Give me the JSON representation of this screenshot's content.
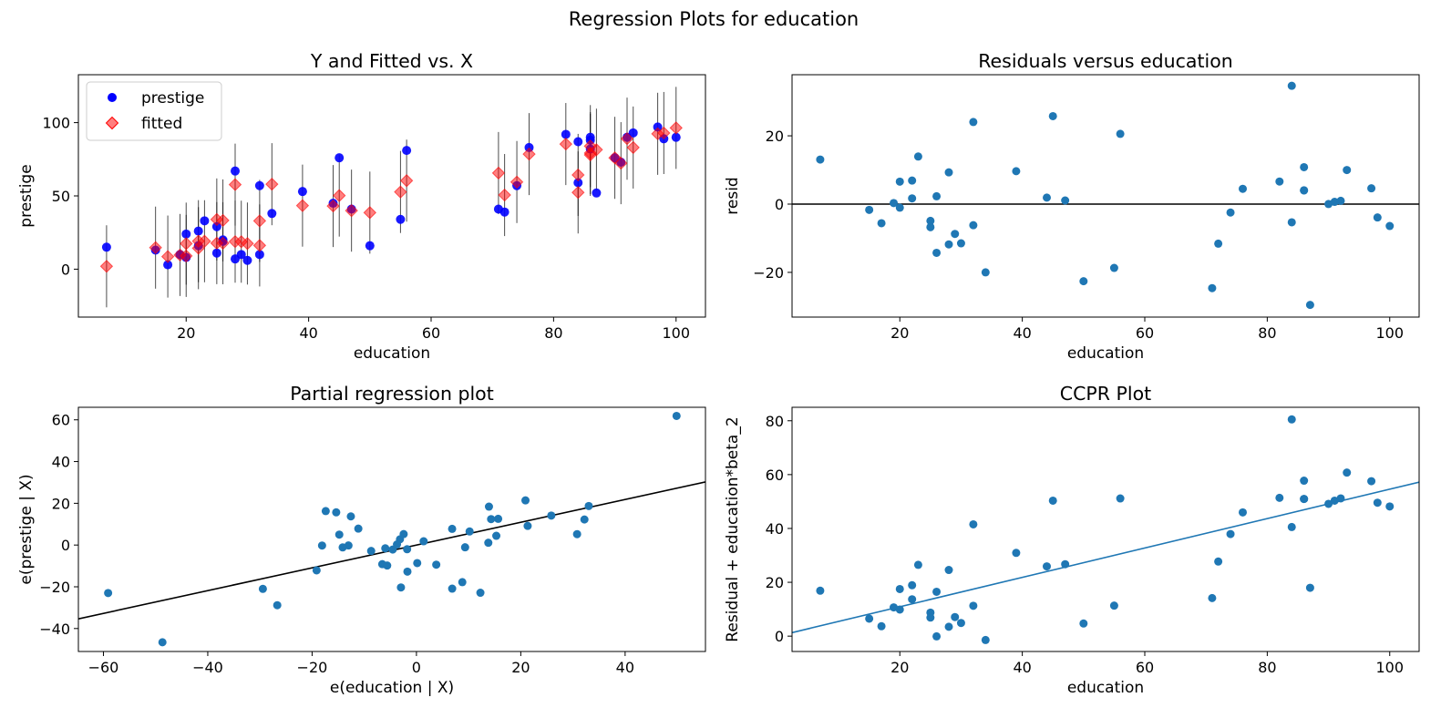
{
  "suptitle": "Regression Plots for education",
  "chart_data": [
    {
      "type": "scatter",
      "title": "Y and Fitted vs. X",
      "xlabel": "education",
      "ylabel": "prestige",
      "xlim": [
        2.4,
        104.8
      ],
      "ylim": [
        -32.7,
        132.7
      ],
      "xticks": [
        20,
        40,
        60,
        80,
        100
      ],
      "yticks": [
        0,
        50,
        100
      ],
      "legend": "upper left",
      "grid": false,
      "colors": {
        "prestige": "#0000ff",
        "fitted": "#ff0000",
        "interval": "#000000"
      },
      "interval_halfwidth": 28,
      "x": [
        86,
        76,
        92,
        90,
        86,
        84,
        93,
        100,
        87,
        86,
        74,
        98,
        97,
        84,
        91,
        34,
        45,
        56,
        44,
        82,
        72,
        55,
        71,
        50,
        23,
        39,
        28,
        32,
        22,
        25,
        29,
        7,
        26,
        19,
        15,
        20,
        26,
        28,
        17,
        22,
        30,
        25,
        20,
        47,
        32
      ],
      "series": [
        {
          "name": "prestige",
          "values": [
            82,
            83,
            90,
            76,
            90,
            87,
            93,
            90,
            52,
            88,
            57,
            89,
            97,
            59,
            73,
            38,
            76,
            81,
            45,
            92,
            39,
            34,
            41,
            16,
            33,
            53,
            67,
            57,
            26,
            29,
            10,
            15,
            19,
            10,
            13,
            24,
            20,
            7,
            3,
            16,
            6,
            11,
            8,
            41,
            10
          ]
        },
        {
          "name": "fitted",
          "values": [
            77.99,
            78.52,
            89.05,
            75.98,
            79.19,
            52.35,
            83.01,
            96.41,
            81.53,
            83.98,
            59.47,
            92.92,
            92.38,
            64.33,
            72.34,
            57.99,
            50.23,
            60.42,
            43.1,
            85.39,
            50.59,
            52.69,
            65.61,
            38.59,
            19.06,
            43.36,
            57.71,
            32.95,
            19.11,
            33.92,
            18.74,
            1.95,
            33.27,
            9.69,
            14.7,
            17.42,
            17.71,
            18.8,
            8.6,
            14.33,
            17.49,
            17.76,
            9.05,
            39.94,
            16.19
          ]
        }
      ]
    },
    {
      "type": "scatter",
      "title": "Residuals versus education",
      "xlabel": "education",
      "ylabel": "resid",
      "xlim": [
        2.4,
        104.8
      ],
      "ylim": [
        -33.1,
        37.9
      ],
      "xticks": [
        20,
        40,
        60,
        80,
        100
      ],
      "yticks": [
        -20,
        0,
        20
      ],
      "hline": 0,
      "color": "#1f77b4",
      "x": [
        86,
        76,
        92,
        90,
        86,
        84,
        93,
        100,
        87,
        86,
        74,
        98,
        97,
        84,
        91,
        34,
        45,
        56,
        44,
        82,
        72,
        55,
        71,
        50,
        23,
        39,
        28,
        32,
        22,
        25,
        29,
        7,
        26,
        19,
        15,
        20,
        26,
        28,
        17,
        22,
        30,
        25,
        20,
        47,
        32
      ],
      "y": [
        4.01,
        4.48,
        0.95,
        0.02,
        10.81,
        34.65,
        9.99,
        -6.41,
        -29.53,
        4.02,
        -2.47,
        -3.92,
        4.62,
        -5.33,
        0.66,
        -19.99,
        25.77,
        20.58,
        1.9,
        6.61,
        -11.59,
        -18.69,
        -24.61,
        -22.59,
        13.94,
        9.64,
        9.29,
        24.05,
        6.89,
        -4.92,
        -8.74,
        13.05,
        -14.27,
        0.31,
        -1.7,
        6.58,
        2.29,
        -11.8,
        -5.6,
        1.67,
        -11.49,
        -6.76,
        -1.05,
        1.06,
        -6.19
      ]
    },
    {
      "type": "scatter",
      "title": "Partial regression plot",
      "xlabel": "e(education | X)",
      "ylabel": "e(prestige | X)",
      "xlim": [
        -64.8,
        55.4
      ],
      "ylim": [
        -51,
        66
      ],
      "xticks": [
        -60,
        -40,
        -20,
        0,
        20,
        40
      ],
      "yticks": [
        -40,
        -20,
        0,
        20,
        40,
        60
      ],
      "color": "#1f77b4",
      "line": {
        "slope": 0.5458,
        "intercept": 0,
        "color": "#000000"
      },
      "x": [
        15.67,
        -3.16,
        10.19,
        25.85,
        13.9,
        49.86,
        20.9,
        13.78,
        12.26,
        6.84,
        21.32,
        15.31,
        14.31,
        32.2,
        33.03,
        -48.69,
        -17.39,
        -12.57,
        -8.68,
        -2.45,
        30.79,
        -2.97,
        6.85,
        8.79,
        -11.14,
        -18.09,
        -59.1,
        -15.38,
        -13.03,
        -29.44,
        0.15,
        -14.79,
        -26.68,
        -4.55,
        -19.14,
        -14.14,
        -3.73,
        -1.73,
        -6.55,
        -5.97,
        3.8,
        -5.61,
        -1.79,
        1.38,
        9.33
      ],
      "y": [
        12.55,
        2.75,
        6.5,
        14.12,
        18.39,
        61.87,
        21.39,
        1.1,
        -22.85,
        7.75,
        9.17,
        4.42,
        12.42,
        12.25,
        18.69,
        -46.58,
        16.28,
        13.72,
        -2.83,
        5.26,
        5.22,
        -20.31,
        -20.88,
        -17.78,
        7.87,
        -0.23,
        -22.98,
        15.66,
        -0.21,
        -20.99,
        -8.64,
        5.0,
        -28.83,
        -2.16,
        -12.13,
        -1.13,
        0.28,
        -12.72,
        -9.16,
        -1.56,
        -9.4,
        -9.81,
        -2.0,
        1.82,
        -1.08
      ]
    },
    {
      "type": "scatter",
      "title": "CCPR Plot",
      "xlabel": "education",
      "ylabel": "Residual + education*beta_2",
      "xlim": [
        2.4,
        104.8
      ],
      "ylim": [
        -5.7,
        85
      ],
      "xticks": [
        20,
        40,
        60,
        80,
        100
      ],
      "yticks": [
        0,
        20,
        40,
        60,
        80
      ],
      "color": "#1f77b4",
      "line": {
        "slope": 0.5458,
        "intercept": 0,
        "color": "#1f77b4"
      },
      "x": [
        86,
        76,
        92,
        90,
        86,
        84,
        93,
        100,
        87,
        86,
        74,
        98,
        97,
        84,
        91,
        34,
        45,
        56,
        44,
        82,
        72,
        55,
        71,
        50,
        23,
        39,
        28,
        32,
        22,
        25,
        29,
        7,
        26,
        19,
        15,
        20,
        26,
        28,
        17,
        22,
        30,
        25,
        20,
        47,
        32
      ],
      "y": [
        50.95,
        45.96,
        51.16,
        49.14,
        57.75,
        80.5,
        60.75,
        48.17,
        17.95,
        50.96,
        37.92,
        49.57,
        57.56,
        40.52,
        50.33,
        -1.43,
        50.33,
        51.14,
        25.92,
        51.37,
        27.71,
        11.33,
        14.14,
        4.7,
        26.49,
        30.93,
        24.57,
        41.52,
        18.9,
        8.73,
        7.09,
        16.87,
        -0.08,
        10.68,
        6.49,
        17.5,
        16.48,
        3.48,
        3.68,
        13.68,
        4.88,
        6.89,
        9.87,
        26.71,
        11.28
      ]
    }
  ]
}
